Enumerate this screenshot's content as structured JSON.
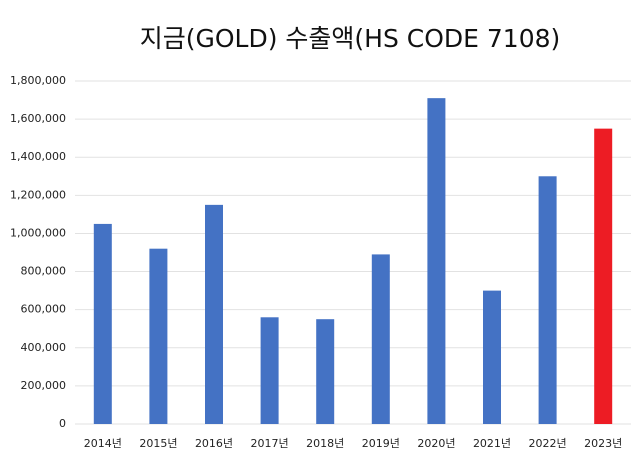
{
  "chart_data": {
    "type": "bar",
    "title": "지금(GOLD) 수출액(HS CODE 7108)",
    "categories": [
      "2014년",
      "2015년",
      "2016년",
      "2017년",
      "2018년",
      "2019년",
      "2020년",
      "2021년",
      "2022년",
      "2023년"
    ],
    "values": [
      1050000,
      920000,
      1150000,
      560000,
      550000,
      890000,
      1710000,
      700000,
      1300000,
      1550000
    ],
    "colors": [
      "#4472c4",
      "#4472c4",
      "#4472c4",
      "#4472c4",
      "#4472c4",
      "#4472c4",
      "#4472c4",
      "#4472c4",
      "#4472c4",
      "#ed1c24"
    ],
    "ylim": [
      0,
      1800000
    ],
    "yticks": [
      0,
      {
        "value": 200000,
        "label": "200,000"
      },
      {
        "value": 400000,
        "label": "400,000"
      },
      {
        "value": 600000,
        "label": "600,000"
      },
      {
        "value": 800000,
        "label": "800,000"
      },
      {
        "value": 1000000,
        "label": "1,000,000"
      },
      {
        "value": 1200000,
        "label": "1,200,000"
      },
      {
        "value": 1400000,
        "label": "1,400,000"
      },
      {
        "value": 1600000,
        "label": "1,600,000"
      },
      {
        "value": 1800000,
        "label": "1,800,000"
      }
    ],
    "grid": true
  }
}
